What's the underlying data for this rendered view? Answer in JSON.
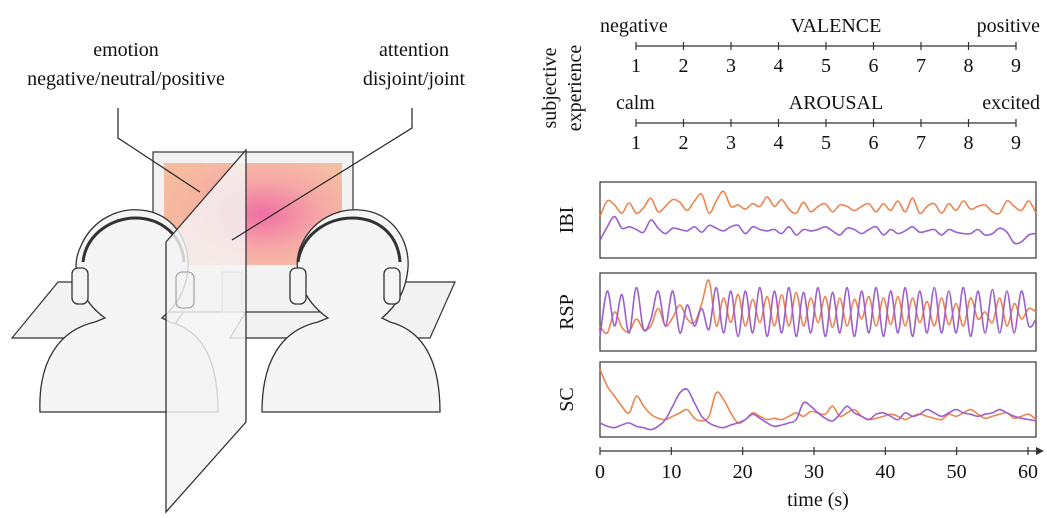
{
  "illustration": {
    "emotion_label": "emotion",
    "emotion_options": "negative/neutral/positive",
    "attention_label": "attention",
    "attention_options": "disjoint/joint"
  },
  "subjective": {
    "side_label_line1": "subjective",
    "side_label_line2": "experience",
    "scales": [
      {
        "title": "VALENCE",
        "low": "negative",
        "high": "positive",
        "ticks": [
          "1",
          "2",
          "3",
          "4",
          "5",
          "6",
          "7",
          "8",
          "9"
        ]
      },
      {
        "title": "AROUSAL",
        "low": "calm",
        "high": "excited",
        "ticks": [
          "1",
          "2",
          "3",
          "4",
          "5",
          "6",
          "7",
          "8",
          "9"
        ]
      }
    ]
  },
  "colors": {
    "series_a": "#ee8550",
    "series_b": "#9b5fcf",
    "screen": "#f5b59b",
    "screen_center": "#ef6fa4"
  },
  "chart_data": [
    {
      "type": "line",
      "ylabel": "IBI",
      "xlim": [
        0,
        60
      ],
      "series": [
        {
          "color": "orange",
          "y": [
            0.55,
            0.78,
            0.72,
            0.6,
            0.75,
            0.6,
            0.68,
            0.82,
            0.62,
            0.7,
            0.8,
            0.76,
            0.64,
            0.78,
            0.88,
            0.6,
            0.78,
            0.92,
            0.7,
            0.72,
            0.66,
            0.74,
            0.7,
            0.84,
            0.7,
            0.8,
            0.66,
            0.6,
            0.76,
            0.62,
            0.7,
            0.74,
            0.62,
            0.72,
            0.7,
            0.64,
            0.7,
            0.74,
            0.62,
            0.74,
            0.64,
            0.78,
            0.62,
            0.82,
            0.6,
            0.7,
            0.74,
            0.6,
            0.74,
            0.64,
            0.78,
            0.66,
            0.7,
            0.72,
            0.62,
            0.6,
            0.78,
            0.7,
            0.64,
            0.78,
            0.6
          ]
        },
        {
          "color": "purple",
          "y": [
            0.2,
            0.4,
            0.55,
            0.38,
            0.4,
            0.36,
            0.32,
            0.5,
            0.38,
            0.3,
            0.38,
            0.36,
            0.34,
            0.4,
            0.32,
            0.42,
            0.38,
            0.34,
            0.4,
            0.42,
            0.3,
            0.4,
            0.36,
            0.34,
            0.36,
            0.3,
            0.4,
            0.28,
            0.36,
            0.34,
            0.36,
            0.4,
            0.34,
            0.28,
            0.38,
            0.36,
            0.3,
            0.36,
            0.4,
            0.28,
            0.36,
            0.3,
            0.34,
            0.4,
            0.32,
            0.34,
            0.36,
            0.28,
            0.36,
            0.32,
            0.3,
            0.3,
            0.36,
            0.28,
            0.3,
            0.38,
            0.32,
            0.16,
            0.18,
            0.28,
            0.3
          ]
        }
      ]
    },
    {
      "type": "line",
      "ylabel": "RSP",
      "xlim": [
        0,
        60
      ],
      "series": [
        {
          "color": "orange",
          "y": [
            0.3,
            0.2,
            0.5,
            0.28,
            0.22,
            0.4,
            0.25,
            0.3,
            0.55,
            0.3,
            0.42,
            0.6,
            0.4,
            0.35,
            0.62,
            0.95,
            0.3,
            0.7,
            0.35,
            0.75,
            0.3,
            0.68,
            0.35,
            0.72,
            0.3,
            0.75,
            0.3,
            0.78,
            0.3,
            0.7,
            0.35,
            0.72,
            0.28,
            0.7,
            0.3,
            0.68,
            0.4,
            0.72,
            0.3,
            0.7,
            0.32,
            0.72,
            0.3,
            0.7,
            0.35,
            0.65,
            0.3,
            0.7,
            0.32,
            0.62,
            0.3,
            0.7,
            0.4,
            0.5,
            0.35,
            0.7,
            0.3,
            0.62,
            0.4,
            0.55,
            0.5
          ]
        },
        {
          "color": "purple",
          "y": [
            0.15,
            0.8,
            0.3,
            0.75,
            0.2,
            0.85,
            0.25,
            0.4,
            0.8,
            0.3,
            0.8,
            0.2,
            0.6,
            0.3,
            0.55,
            0.25,
            0.85,
            0.2,
            0.8,
            0.15,
            0.8,
            0.2,
            0.85,
            0.15,
            0.8,
            0.2,
            0.85,
            0.15,
            0.78,
            0.2,
            0.85,
            0.15,
            0.78,
            0.2,
            0.85,
            0.15,
            0.8,
            0.2,
            0.85,
            0.15,
            0.8,
            0.2,
            0.85,
            0.15,
            0.8,
            0.2,
            0.85,
            0.2,
            0.8,
            0.2,
            0.85,
            0.15,
            0.8,
            0.2,
            0.82,
            0.2,
            0.8,
            0.2,
            0.8,
            0.3,
            0.4
          ]
        }
      ]
    },
    {
      "type": "line",
      "ylabel": "SC",
      "xlim": [
        0,
        60
      ],
      "series": [
        {
          "color": "orange",
          "y": [
            0.95,
            0.7,
            0.55,
            0.4,
            0.3,
            0.55,
            0.4,
            0.28,
            0.22,
            0.2,
            0.25,
            0.3,
            0.35,
            0.22,
            0.18,
            0.25,
            0.6,
            0.5,
            0.3,
            0.15,
            0.2,
            0.3,
            0.25,
            0.2,
            0.22,
            0.2,
            0.25,
            0.3,
            0.25,
            0.32,
            0.3,
            0.28,
            0.4,
            0.25,
            0.3,
            0.35,
            0.25,
            0.2,
            0.22,
            0.25,
            0.28,
            0.25,
            0.2,
            0.25,
            0.28,
            0.25,
            0.22,
            0.2,
            0.28,
            0.25,
            0.3,
            0.35,
            0.28,
            0.22,
            0.25,
            0.28,
            0.3,
            0.22,
            0.25,
            0.28,
            0.2
          ]
        },
        {
          "color": "purple",
          "y": [
            0.15,
            0.1,
            0.08,
            0.12,
            0.15,
            0.1,
            0.08,
            0.05,
            0.1,
            0.2,
            0.4,
            0.6,
            0.65,
            0.45,
            0.25,
            0.15,
            0.1,
            0.08,
            0.12,
            0.15,
            0.2,
            0.28,
            0.22,
            0.15,
            0.1,
            0.12,
            0.15,
            0.2,
            0.45,
            0.4,
            0.3,
            0.22,
            0.18,
            0.28,
            0.4,
            0.3,
            0.25,
            0.2,
            0.28,
            0.3,
            0.25,
            0.2,
            0.3,
            0.25,
            0.28,
            0.35,
            0.3,
            0.25,
            0.3,
            0.35,
            0.3,
            0.28,
            0.25,
            0.28,
            0.3,
            0.35,
            0.3,
            0.25,
            0.22,
            0.2,
            0.18
          ]
        }
      ]
    },
    {
      "type": "axis",
      "xlabel": "time (s)",
      "xticks": [
        "0",
        "10",
        "20",
        "30",
        "40",
        "50",
        "60"
      ]
    }
  ]
}
